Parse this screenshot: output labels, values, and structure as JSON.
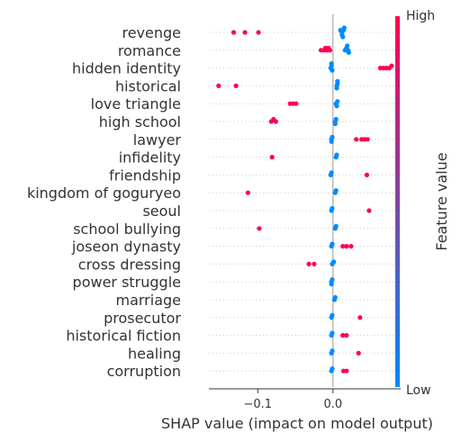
{
  "chart_data": {
    "type": "scatter",
    "subtype": "shap-beeswarm",
    "xlabel": "SHAP value (impact on model output)",
    "ylabel": "",
    "xlim": [
      -0.165,
      0.09
    ],
    "xticks": [
      {
        "value": -0.1,
        "label": "−0.1"
      },
      {
        "value": 0.0,
        "label": "0.0"
      }
    ],
    "grid": false,
    "zero_line": true,
    "colorbar": {
      "label": "Feature value",
      "high_label": "High",
      "low_label": "Low",
      "high_color": "#ff0052",
      "low_color": "#008bfb",
      "position": "right"
    },
    "features": [
      {
        "name": "revenge",
        "points": [
          {
            "x": -0.132,
            "v": 1
          },
          {
            "x": -0.117,
            "v": 1
          },
          {
            "x": -0.099,
            "v": 1
          },
          {
            "x": 0.012,
            "v": 0
          },
          {
            "x": 0.014,
            "v": 0
          },
          {
            "x": 0.012,
            "v": 0
          },
          {
            "x": 0.015,
            "v": 0
          },
          {
            "x": 0.013,
            "v": 0
          },
          {
            "x": 0.01,
            "v": 0
          }
        ]
      },
      {
        "name": "romance",
        "points": [
          {
            "x": -0.016,
            "v": 1
          },
          {
            "x": -0.012,
            "v": 1
          },
          {
            "x": -0.01,
            "v": 1
          },
          {
            "x": -0.008,
            "v": 1
          },
          {
            "x": -0.006,
            "v": 1
          },
          {
            "x": -0.004,
            "v": 1
          },
          {
            "x": 0.016,
            "v": 0
          },
          {
            "x": 0.018,
            "v": 0
          },
          {
            "x": 0.02,
            "v": 0
          },
          {
            "x": 0.021,
            "v": 0
          },
          {
            "x": 0.019,
            "v": 0
          }
        ]
      },
      {
        "name": "hidden identity",
        "points": [
          {
            "x": 0.063,
            "v": 1
          },
          {
            "x": 0.067,
            "v": 1
          },
          {
            "x": 0.071,
            "v": 1
          },
          {
            "x": 0.075,
            "v": 1
          },
          {
            "x": 0.078,
            "v": 1
          },
          {
            "x": -0.003,
            "v": 0
          },
          {
            "x": -0.002,
            "v": 0
          },
          {
            "x": -0.001,
            "v": 0
          },
          {
            "x": -0.002,
            "v": 0
          }
        ]
      },
      {
        "name": "historical",
        "points": [
          {
            "x": -0.152,
            "v": 1
          },
          {
            "x": -0.129,
            "v": 1
          },
          {
            "x": 0.005,
            "v": 0
          },
          {
            "x": 0.006,
            "v": 0
          },
          {
            "x": 0.005,
            "v": 0
          },
          {
            "x": 0.006,
            "v": 0
          }
        ]
      },
      {
        "name": "love triangle",
        "points": [
          {
            "x": -0.057,
            "v": 1
          },
          {
            "x": -0.053,
            "v": 1
          },
          {
            "x": -0.049,
            "v": 1
          },
          {
            "x": 0.004,
            "v": 0
          },
          {
            "x": 0.006,
            "v": 0
          },
          {
            "x": 0.005,
            "v": 0
          }
        ]
      },
      {
        "name": "high school",
        "points": [
          {
            "x": -0.082,
            "v": 1
          },
          {
            "x": -0.079,
            "v": 1
          },
          {
            "x": -0.076,
            "v": 1
          },
          {
            "x": 0.003,
            "v": 0
          },
          {
            "x": 0.004,
            "v": 0
          },
          {
            "x": 0.003,
            "v": 0
          }
        ]
      },
      {
        "name": "lawyer",
        "points": [
          {
            "x": 0.031,
            "v": 1
          },
          {
            "x": 0.038,
            "v": 1
          },
          {
            "x": 0.042,
            "v": 1
          },
          {
            "x": 0.046,
            "v": 1
          },
          {
            "x": -0.002,
            "v": 0
          },
          {
            "x": -0.001,
            "v": 0
          },
          {
            "x": -0.002,
            "v": 0
          }
        ]
      },
      {
        "name": "infidelity",
        "points": [
          {
            "x": -0.081,
            "v": 1
          },
          {
            "x": 0.004,
            "v": 0
          },
          {
            "x": 0.005,
            "v": 0
          }
        ]
      },
      {
        "name": "friendship",
        "points": [
          {
            "x": 0.045,
            "v": 1
          },
          {
            "x": -0.003,
            "v": 0
          },
          {
            "x": -0.002,
            "v": 0
          }
        ]
      },
      {
        "name": "kingdom of goguryeo",
        "points": [
          {
            "x": -0.113,
            "v": 1
          },
          {
            "x": 0.003,
            "v": 0
          },
          {
            "x": 0.004,
            "v": 0
          }
        ]
      },
      {
        "name": "seoul",
        "points": [
          {
            "x": 0.048,
            "v": 1
          },
          {
            "x": -0.002,
            "v": 0
          },
          {
            "x": -0.001,
            "v": 0
          }
        ]
      },
      {
        "name": "school bullying",
        "points": [
          {
            "x": -0.098,
            "v": 1
          },
          {
            "x": 0.003,
            "v": 0
          },
          {
            "x": 0.004,
            "v": 0
          }
        ]
      },
      {
        "name": "joseon dynasty",
        "points": [
          {
            "x": 0.013,
            "v": 1
          },
          {
            "x": 0.018,
            "v": 1
          },
          {
            "x": 0.024,
            "v": 1
          },
          {
            "x": -0.002,
            "v": 0
          },
          {
            "x": -0.001,
            "v": 0
          }
        ]
      },
      {
        "name": "cross dressing",
        "points": [
          {
            "x": -0.032,
            "v": 1
          },
          {
            "x": -0.025,
            "v": 1
          },
          {
            "x": -0.001,
            "v": 0
          },
          {
            "x": 0.001,
            "v": 0
          }
        ]
      },
      {
        "name": "power struggle",
        "points": [
          {
            "x": -0.002,
            "v": 0
          },
          {
            "x": -0.001,
            "v": 0
          },
          {
            "x": -0.002,
            "v": 0
          }
        ]
      },
      {
        "name": "marriage",
        "points": [
          {
            "x": 0.002,
            "v": 0
          },
          {
            "x": 0.003,
            "v": 0
          }
        ]
      },
      {
        "name": "prosecutor",
        "points": [
          {
            "x": 0.036,
            "v": 1
          },
          {
            "x": -0.002,
            "v": 0
          },
          {
            "x": -0.001,
            "v": 0
          }
        ]
      },
      {
        "name": "historical fiction",
        "points": [
          {
            "x": 0.013,
            "v": 1
          },
          {
            "x": 0.018,
            "v": 1
          },
          {
            "x": -0.002,
            "v": 0
          },
          {
            "x": -0.001,
            "v": 0
          }
        ]
      },
      {
        "name": "healing",
        "points": [
          {
            "x": 0.034,
            "v": 1
          },
          {
            "x": -0.002,
            "v": 0
          },
          {
            "x": -0.001,
            "v": 0
          }
        ]
      },
      {
        "name": "corruption",
        "points": [
          {
            "x": 0.014,
            "v": 1
          },
          {
            "x": 0.018,
            "v": 1
          },
          {
            "x": -0.002,
            "v": 0
          },
          {
            "x": -0.001,
            "v": 0
          }
        ]
      }
    ]
  }
}
